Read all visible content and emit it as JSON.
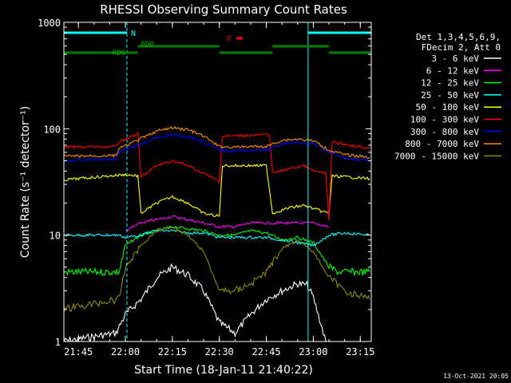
{
  "chart_data": {
    "type": "line",
    "title": "RHESSI Observing Summary Count Rates",
    "xlabel": "Start Time (18-Jan-11 21:40:22)",
    "ylabel": "Count Rate (s⁻¹ detector⁻¹)",
    "y_scale": "log",
    "ylim": [
      1,
      1000
    ],
    "xlim": [
      "21:40:22",
      "23:18:30"
    ],
    "x_ticks": [
      "21:45",
      "22:00",
      "22:15",
      "22:30",
      "22:45",
      "23:00",
      "23:15"
    ],
    "y_ticks": [
      "1",
      "10",
      "100",
      "1000"
    ],
    "timestamp": "13-Oct-2021 20:05",
    "legend": {
      "placement": "right",
      "header": [
        "Det 1,3,4,5,6,9,",
        "FDecim 2, Att 0"
      ],
      "entries": [
        {
          "label": "3 - 6 keV",
          "color": "#ffffff"
        },
        {
          "label": "6 - 12 keV",
          "color": "#ff00ff"
        },
        {
          "label": "12 - 25 keV",
          "color": "#00ff00"
        },
        {
          "label": "25 - 50 keV",
          "color": "#00ffff"
        },
        {
          "label": "50 - 100 keV",
          "color": "#ffff00"
        },
        {
          "label": "100 - 300 keV",
          "color": "#ff0000"
        },
        {
          "label": "300 - 800 keV",
          "color": "#0000ff"
        },
        {
          "label": "800 - 7000 keV",
          "color": "#ff8c00"
        },
        {
          "label": "7000 - 15000 keV",
          "color": "#8b8b00"
        }
      ]
    },
    "annotations": {
      "night": "N",
      "flare": "F",
      "rd0": "RD0",
      "rd6": "RD6"
    },
    "state_bars": {
      "night": [
        [
          "21:40:22",
          "22:00:30"
        ],
        [
          "22:58:20",
          "23:18:30"
        ]
      ],
      "flare": [
        [
          "22:35:30",
          "22:37:30"
        ]
      ],
      "rd0": [
        [
          "22:04:00",
          "22:30:00"
        ],
        [
          "22:47:00",
          "23:05:00"
        ]
      ],
      "rd6": [
        [
          "21:40:22",
          "22:04:00"
        ],
        [
          "22:30:00",
          "22:47:00"
        ],
        [
          "23:05:00",
          "23:18:30"
        ]
      ]
    },
    "series": [
      {
        "name": "3 - 6 keV",
        "color": "#ffffff",
        "x": [
          "21:40",
          "21:57",
          "22:00",
          "22:05",
          "22:10",
          "22:15",
          "22:20",
          "22:25",
          "22:30",
          "22:35",
          "22:40",
          "22:45",
          "22:50",
          "22:55",
          "22:58",
          "23:00",
          "23:04"
        ],
        "values": [
          1.0,
          1.2,
          1.8,
          2.5,
          4.0,
          5.0,
          4.2,
          3.0,
          1.5,
          1.2,
          1.8,
          2.5,
          3.0,
          3.5,
          3.4,
          2.6,
          1.0
        ]
      },
      {
        "name": "6 - 12 keV",
        "color": "#ff00ff",
        "x": [
          "22:00",
          "22:05",
          "22:10",
          "22:15",
          "22:20",
          "22:25",
          "22:30",
          "22:35",
          "22:40",
          "22:45",
          "22:50",
          "22:55",
          "23:00",
          "23:05"
        ],
        "values": [
          11,
          13,
          14,
          15,
          14,
          13,
          12,
          12,
          13,
          13,
          13,
          13,
          13,
          12
        ]
      },
      {
        "name": "12 - 25 keV",
        "color": "#00ff00",
        "x": [
          "21:40",
          "21:58",
          "22:00",
          "22:05",
          "22:10",
          "22:15",
          "22:20",
          "22:25",
          "22:30",
          "22:35",
          "22:40",
          "22:45",
          "22:50",
          "22:55",
          "23:00",
          "23:05",
          "23:08",
          "23:12",
          "23:18"
        ],
        "values": [
          4.5,
          4.5,
          8.0,
          10,
          11,
          12,
          11.5,
          11,
          10,
          10,
          11,
          10.5,
          9.0,
          9.5,
          8.5,
          5.0,
          4.5,
          4.5,
          4.5
        ]
      },
      {
        "name": "25 - 50 keV",
        "color": "#00ffff",
        "x": [
          "21:40",
          "21:50",
          "21:58",
          "22:00",
          "22:05",
          "22:10",
          "22:15",
          "22:20",
          "22:25",
          "22:30",
          "22:35",
          "22:40",
          "22:45",
          "22:50",
          "22:55",
          "23:00",
          "23:05",
          "23:10",
          "23:18"
        ],
        "values": [
          10,
          10,
          10,
          9.5,
          10,
          11,
          11,
          10.5,
          10.5,
          9.5,
          9.5,
          9.5,
          9.5,
          9.0,
          8.5,
          8.0,
          10,
          10.5,
          10
        ]
      },
      {
        "name": "50 - 100 keV",
        "color": "#ffff00",
        "x": [
          "21:40",
          "21:55",
          "22:00",
          "22:04",
          "22:05",
          "22:10",
          "22:15",
          "22:20",
          "22:25",
          "22:30",
          "22:31",
          "22:45",
          "22:47",
          "22:52",
          "22:57",
          "23:02",
          "23:05",
          "23:06",
          "23:18"
        ],
        "values": [
          33,
          36,
          37,
          36,
          16,
          20,
          23,
          20,
          16,
          15,
          45,
          45,
          16,
          18,
          19,
          17,
          16,
          36,
          34
        ]
      },
      {
        "name": "100 - 300 keV",
        "color": "#ff0000",
        "x": [
          "21:40",
          "21:57",
          "21:58",
          "22:04",
          "22:05",
          "22:10",
          "22:15",
          "22:20",
          "22:25",
          "22:30",
          "22:31",
          "22:46",
          "22:47",
          "22:52",
          "22:57",
          "23:00",
          "23:04",
          "23:05",
          "23:06",
          "23:12",
          "23:18"
        ],
        "values": [
          67,
          68,
          75,
          90,
          35,
          45,
          50,
          45,
          38,
          32,
          85,
          88,
          38,
          42,
          45,
          40,
          38,
          14,
          75,
          70,
          65
        ]
      },
      {
        "name": "300 - 800 keV",
        "color": "#0000ff",
        "x": [
          "21:40",
          "21:57",
          "21:58",
          "22:04",
          "22:10",
          "22:15",
          "22:20",
          "22:25",
          "22:30",
          "22:35",
          "22:40",
          "22:45",
          "22:50",
          "22:55",
          "23:00",
          "23:05",
          "23:10",
          "23:18"
        ],
        "values": [
          50,
          52,
          60,
          70,
          82,
          88,
          85,
          75,
          63,
          62,
          63,
          63,
          72,
          75,
          72,
          60,
          53,
          50
        ]
      },
      {
        "name": "800 - 7000 keV",
        "color": "#ff8c00",
        "x": [
          "21:40",
          "21:57",
          "21:58",
          "22:04",
          "22:10",
          "22:15",
          "22:20",
          "22:25",
          "22:30",
          "22:35",
          "22:40",
          "22:45",
          "22:50",
          "22:55",
          "23:00",
          "23:05",
          "23:10",
          "23:18"
        ],
        "values": [
          55,
          56,
          65,
          78,
          95,
          102,
          98,
          85,
          68,
          67,
          68,
          68,
          78,
          80,
          77,
          63,
          57,
          54
        ]
      },
      {
        "name": "7000 - 15000 keV",
        "color": "#8b8b00",
        "x": [
          "21:40",
          "21:58",
          "22:00",
          "22:05",
          "22:10",
          "22:15",
          "22:20",
          "22:25",
          "22:30",
          "22:35",
          "22:40",
          "22:45",
          "22:50",
          "22:55",
          "23:00",
          "23:05",
          "23:10",
          "23:18"
        ],
        "values": [
          2.0,
          2.5,
          5.0,
          8.0,
          11,
          12,
          10,
          7.0,
          3.0,
          3.0,
          3.5,
          4.5,
          7.5,
          9.0,
          7.0,
          4.0,
          3.0,
          2.5
        ]
      }
    ]
  }
}
